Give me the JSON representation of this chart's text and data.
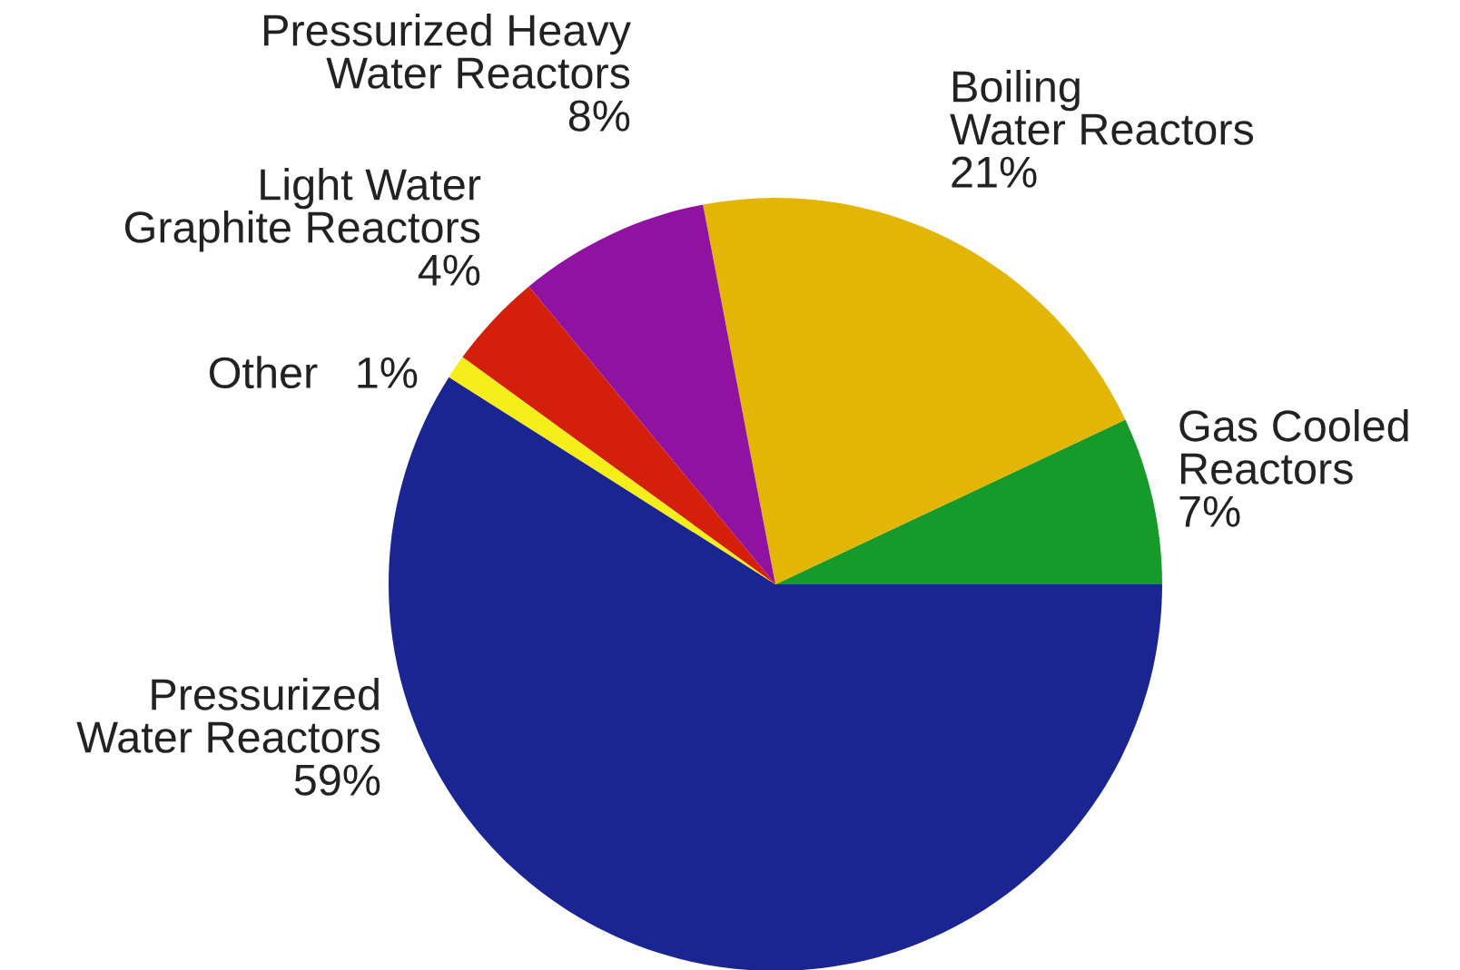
{
  "chart_data": {
    "type": "pie",
    "categories": [
      "Gas Cooled\nReactors",
      "Boiling\nWater Reactors",
      "Pressurized Heavy\nWater Reactors",
      "Light Water\nGraphite Reactors",
      "Other",
      "Pressurized\nWater Reactors"
    ],
    "values": [
      7,
      21,
      8,
      4,
      1,
      59
    ],
    "value_labels": [
      "7%",
      "21%",
      "8%",
      "4%",
      "1%",
      "59%"
    ],
    "colors": [
      "#169a2a",
      "#e3b505",
      "#9012a0",
      "#d41f0a",
      "#f5ee1a",
      "#1b2592"
    ]
  }
}
